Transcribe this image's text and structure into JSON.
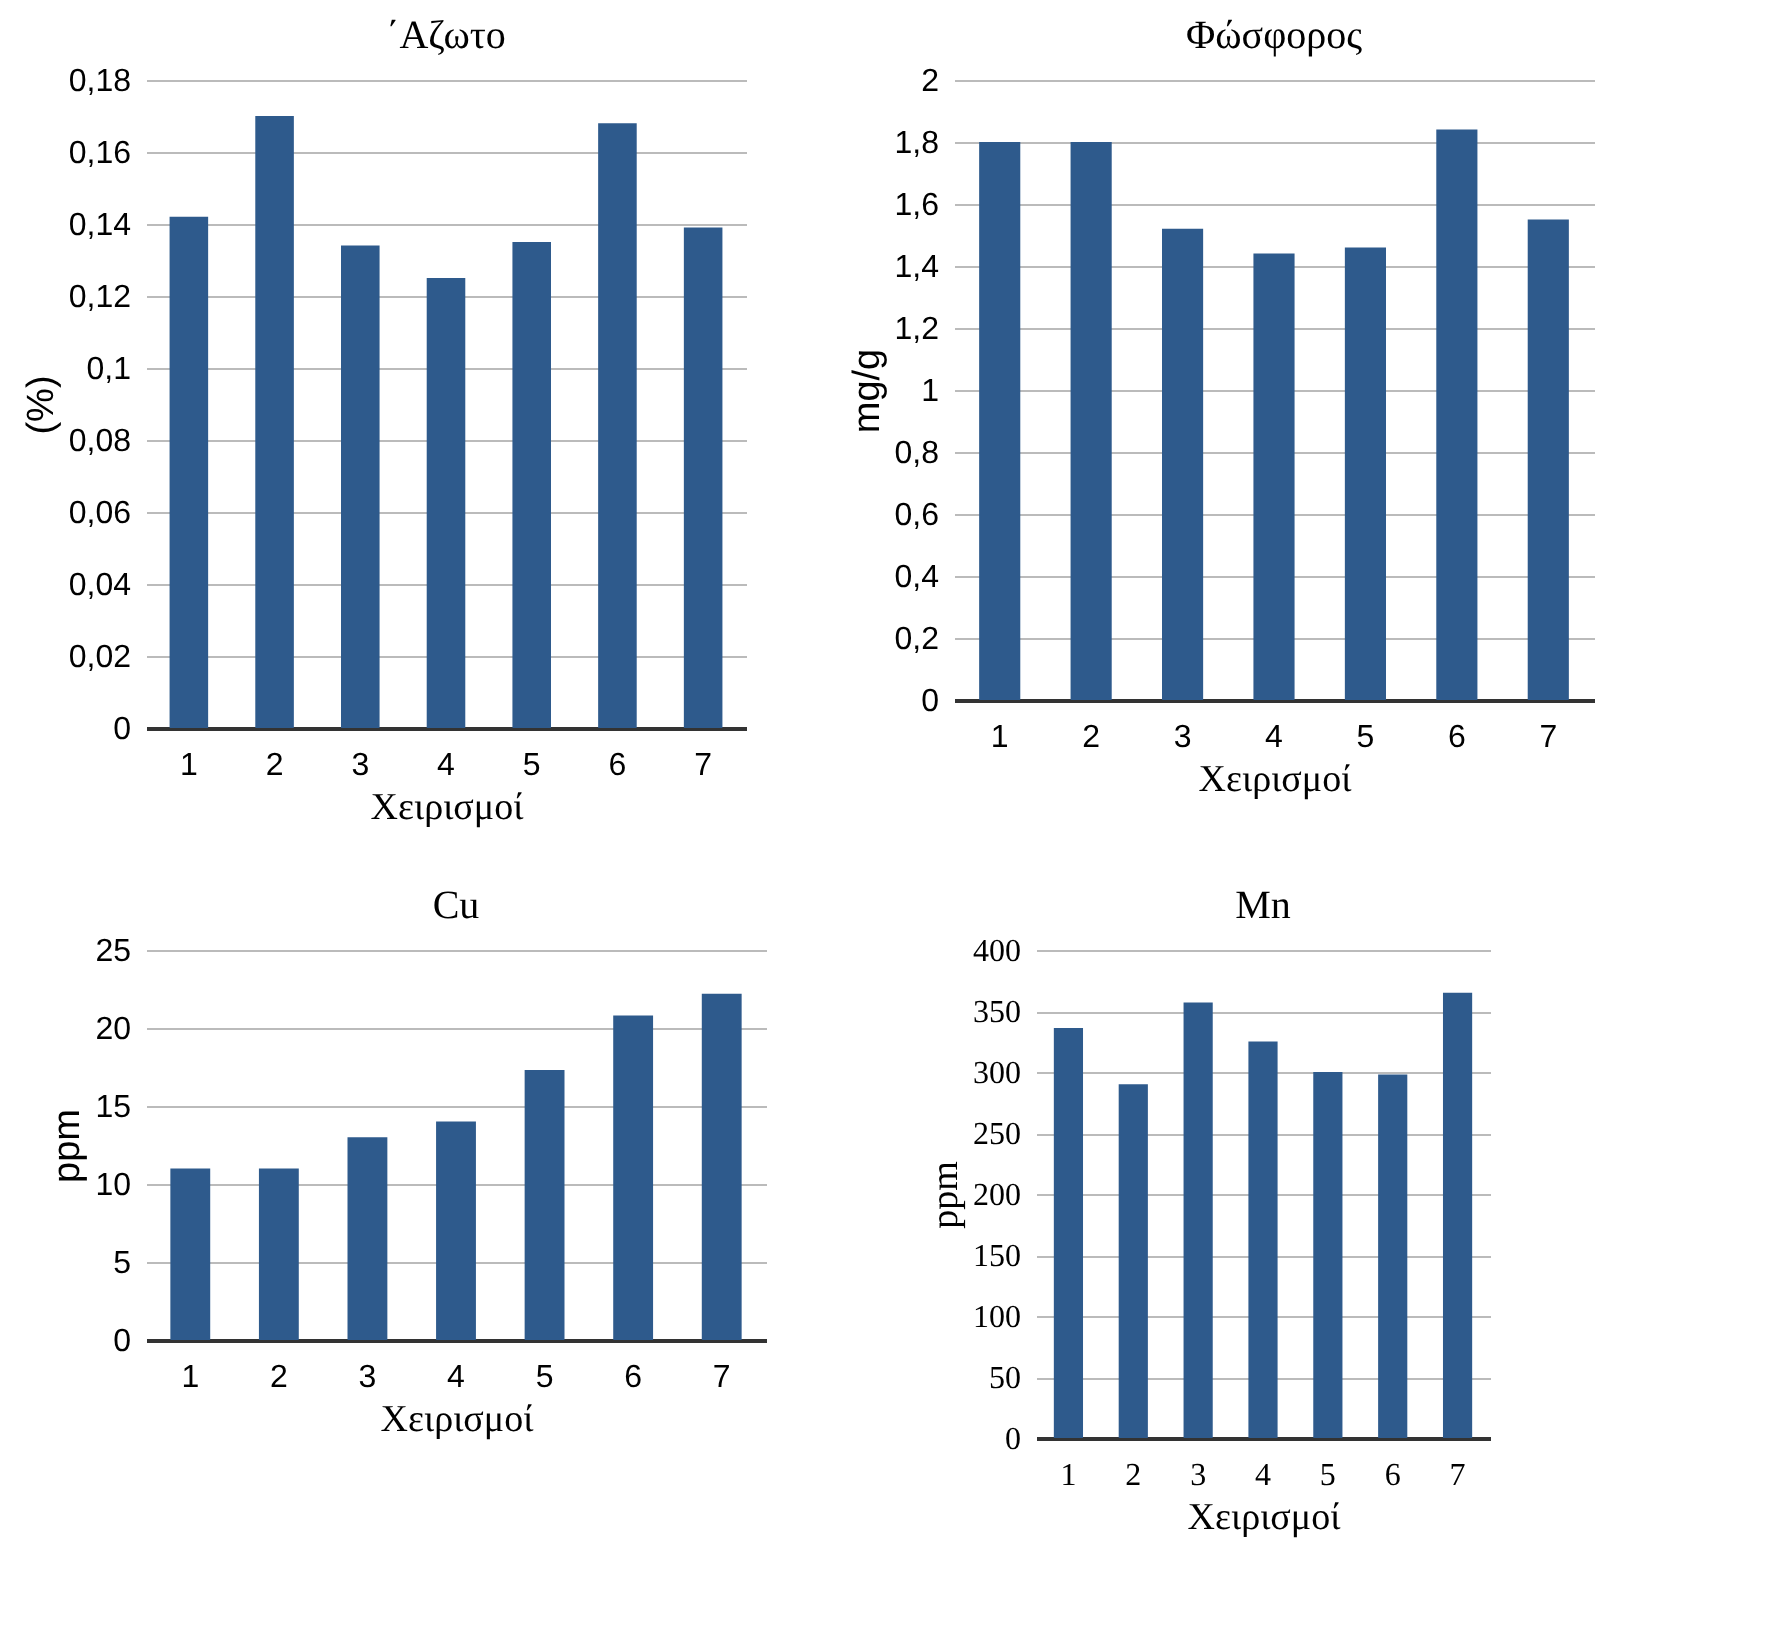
{
  "chart_data": [
    {
      "type": "bar",
      "title": "΄Αζωτο",
      "xlabel": "Χειρισμοί",
      "ylabel": "(%)",
      "categories": [
        "1",
        "2",
        "3",
        "4",
        "5",
        "6",
        "7"
      ],
      "values": [
        0.142,
        0.17,
        0.134,
        0.125,
        0.135,
        0.168,
        0.139
      ],
      "color": "#2e5a8c",
      "ylim": [
        0,
        0.18
      ],
      "yticks": [
        0,
        {
          "value": 0.02,
          "label": "0,02"
        },
        {
          "value": 0.04,
          "label": "0,04"
        },
        {
          "value": 0.06,
          "label": "0,06"
        },
        {
          "value": 0.08,
          "label": "0,08"
        },
        {
          "value": 0.1,
          "label": "0,1"
        },
        {
          "value": 0.12,
          "label": "0,12"
        },
        {
          "value": 0.14,
          "label": "0,14"
        },
        {
          "value": 0.16,
          "label": "0,16"
        },
        {
          "value": 0.18,
          "label": "0,18"
        }
      ],
      "grid": true
    },
    {
      "type": "bar",
      "title": "Φώσφορος",
      "xlabel": "Χειρισμοί",
      "ylabel": "mg/g",
      "categories": [
        "1",
        "2",
        "3",
        "4",
        "5",
        "6",
        "7"
      ],
      "values": [
        1.8,
        1.8,
        1.52,
        1.44,
        1.46,
        1.84,
        1.55
      ],
      "color": "#2e5a8c",
      "ylim": [
        0,
        2
      ],
      "yticks": [
        0,
        {
          "value": 0.2,
          "label": "0,2"
        },
        {
          "value": 0.4,
          "label": "0,4"
        },
        {
          "value": 0.6,
          "label": "0,6"
        },
        {
          "value": 0.8,
          "label": "0,8"
        },
        1,
        {
          "value": 1.2,
          "label": "1,2"
        },
        {
          "value": 1.4,
          "label": "1,4"
        },
        {
          "value": 1.6,
          "label": "1,6"
        },
        {
          "value": 1.8,
          "label": "1,8"
        },
        2
      ],
      "grid": true
    },
    {
      "type": "bar",
      "title": "Cu",
      "xlabel": "Χειρισμοί",
      "ylabel": "ppm",
      "categories": [
        "1",
        "2",
        "3",
        "4",
        "5",
        "6",
        "7"
      ],
      "values": [
        11,
        11,
        13,
        14,
        17.3,
        20.8,
        22.2
      ],
      "color": "#2e5a8c",
      "ylim": [
        0,
        25
      ],
      "yticks": [
        0,
        5,
        10,
        15,
        20,
        25
      ],
      "grid": true
    },
    {
      "type": "bar",
      "title": "Mn",
      "xlabel": "Χειρισμοί",
      "ylabel": "ppm",
      "categories": [
        "1",
        "2",
        "3",
        "4",
        "5",
        "6",
        "7"
      ],
      "values": [
        336,
        290,
        357,
        325,
        300,
        298,
        365
      ],
      "color": "#2e5a8c",
      "ylim": [
        0,
        400
      ],
      "yticks": [
        0,
        50,
        100,
        150,
        200,
        250,
        300,
        350,
        400
      ],
      "grid": true
    }
  ]
}
